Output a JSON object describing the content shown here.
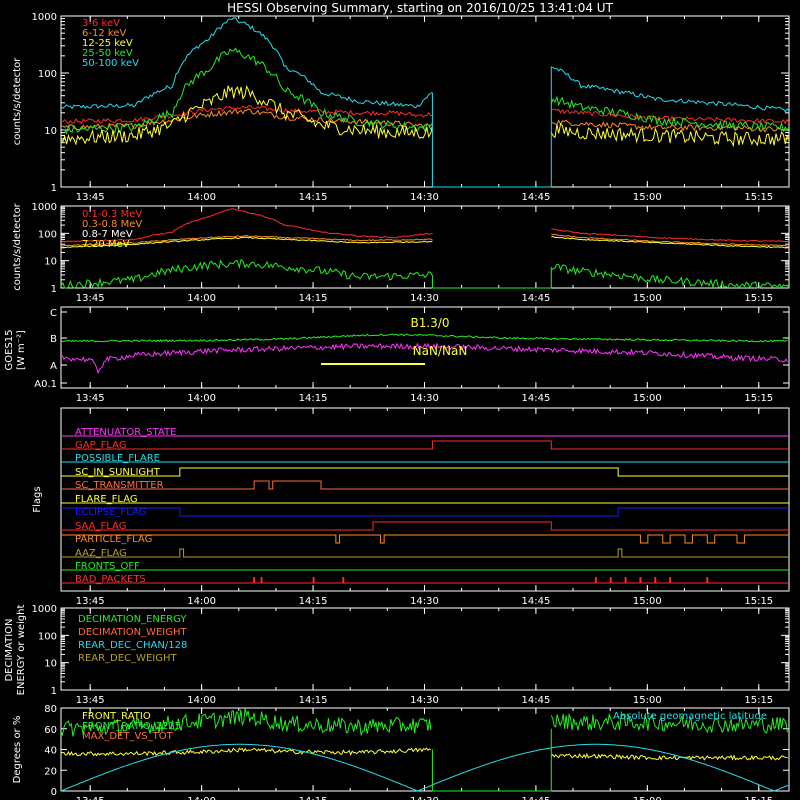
{
  "title": "HESSI Observing Summary, starting on 2016/10/25 13:41:04 UT",
  "time_ticks": [
    "13:45",
    "14:00",
    "14:15",
    "14:30",
    "14:45",
    "15:00",
    "15:15"
  ],
  "colors": {
    "red": "#ff2a2a",
    "orange": "#ff8c1a",
    "yellow": "#ffff33",
    "green": "#22ee22",
    "cyan": "#22ddee",
    "magenta": "#ff33ff",
    "blue": "#1a1aff",
    "olive": "#b8a020",
    "salmon": "#ff6a3a",
    "white": "#ffffff"
  },
  "panels": {
    "p1": {
      "ylabel": "counts/s/detector",
      "yticks": [
        "1",
        "10",
        "100",
        "1000"
      ],
      "legend": [
        "3-6 keV",
        "6-12 keV",
        "12-25 keV",
        "25-50 keV",
        "50-100 keV"
      ]
    },
    "p2": {
      "ylabel": "counts/s/detector",
      "yticks": [
        "1",
        "10",
        "100",
        "1000"
      ],
      "legend": [
        "0.1-0.3 MeV",
        "0.3-0.8 MeV",
        "0.8-7 MeV",
        "7-20 MeV"
      ]
    },
    "p3": {
      "ylabel_top": "GOES15",
      "ylabel_bottom": "[W m⁻²]",
      "yticks": [
        "A0.1",
        "A",
        "B",
        "C"
      ],
      "annot_top": "B1.3/0",
      "annot_bottom": "NaN/NaN"
    },
    "p4": {
      "ylabel": "Flags",
      "flags": [
        "ATTENUATOR_STATE",
        "GAP_FLAG",
        "POSSIBLE_FLARE",
        "SC_IN_SUNLIGHT",
        "SC_TRANSMITTER",
        "FLARE_FLAG",
        "ECLIPSE_FLAG",
        "SAA_FLAG",
        "PARTICLE_FLAG",
        "AAZ_FLAG",
        "FRONTS_OFF",
        "BAD_PACKETS"
      ]
    },
    "p5": {
      "ylabel_top": "DECIMATION",
      "ylabel_bottom": "ENERGY or weight",
      "yticks": [
        "1",
        "10",
        "100",
        "1000"
      ],
      "legend": [
        "DECIMATION_ENERGY",
        "DECIMATION_WEIGHT",
        "REAR_DEC_CHAN/128",
        "REAR_DEC_WEIGHT"
      ]
    },
    "p6": {
      "ylabel": "Degrees or %",
      "yticks": [
        "0",
        "20",
        "40",
        "60",
        "80"
      ],
      "legend": [
        "FRONT_RATIO",
        "FRONT_RATIO_1225",
        "MAX_DET_VS_TOT"
      ],
      "legend_right": "Absolute geomagnetic latitude"
    }
  },
  "chart_data": {
    "type": "line",
    "x_unit": "minutes after 13:41:04 UT",
    "xlim": [
      0,
      98
    ],
    "data_gap": [
      50,
      66
    ],
    "p1_series": [
      {
        "name": "3-6 keV",
        "x": [
          0,
          10,
          15,
          20,
          25,
          30,
          35,
          40,
          45,
          48,
          50,
          66,
          70,
          80,
          90,
          98
        ],
        "y": [
          14,
          15,
          18,
          23,
          25,
          22,
          21,
          20,
          20,
          18,
          19,
          22,
          20,
          16,
          15,
          14
        ]
      },
      {
        "name": "6-12 keV",
        "x": [
          0,
          10,
          15,
          20,
          25,
          30,
          35,
          40,
          45,
          48,
          50,
          66,
          70,
          80,
          90,
          98
        ],
        "y": [
          11,
          12,
          15,
          19,
          22,
          17,
          15,
          14,
          13,
          12,
          12,
          14,
          13,
          11,
          11,
          10
        ]
      },
      {
        "name": "12-25 keV",
        "x": [
          0,
          10,
          15,
          20,
          23,
          25,
          30,
          35,
          40,
          45,
          48,
          50,
          66,
          70,
          80,
          90,
          98
        ],
        "y": [
          7,
          8,
          12,
          30,
          48,
          45,
          20,
          12,
          10,
          9,
          9,
          9,
          10,
          9,
          8,
          7,
          7
        ]
      },
      {
        "name": "25-50 keV",
        "x": [
          0,
          10,
          15,
          20,
          23,
          25,
          30,
          35,
          40,
          45,
          48,
          50,
          66,
          70,
          80,
          90,
          98
        ],
        "y": [
          10,
          11,
          20,
          120,
          250,
          200,
          50,
          20,
          14,
          12,
          11,
          11,
          35,
          25,
          15,
          12,
          11
        ]
      },
      {
        "name": "50-100 keV",
        "x": [
          0,
          10,
          15,
          20,
          23,
          25,
          30,
          35,
          40,
          45,
          48,
          50,
          66,
          70,
          80,
          90,
          98
        ],
        "y": [
          25,
          27,
          60,
          400,
          900,
          700,
          130,
          45,
          32,
          28,
          26,
          45,
          130,
          60,
          35,
          28,
          22
        ]
      }
    ],
    "p2_series": [
      {
        "name": "0.1-0.3 MeV",
        "x": [
          0,
          10,
          15,
          20,
          23,
          25,
          30,
          35,
          40,
          45,
          50,
          66,
          70,
          80,
          90,
          98
        ],
        "y": [
          50,
          60,
          110,
          400,
          800,
          600,
          200,
          110,
          80,
          70,
          100,
          140,
          100,
          70,
          55,
          50
        ]
      },
      {
        "name": "0.3-0.8 MeV",
        "x": [
          0,
          10,
          20,
          25,
          30,
          40,
          50,
          66,
          70,
          80,
          90,
          98
        ],
        "y": [
          35,
          45,
          70,
          80,
          70,
          55,
          60,
          90,
          70,
          50,
          40,
          35
        ]
      },
      {
        "name": "0.8-7 MeV",
        "x": [
          0,
          10,
          20,
          25,
          30,
          40,
          50,
          66,
          70,
          80,
          90,
          98
        ],
        "y": [
          30,
          40,
          60,
          70,
          60,
          45,
          50,
          75,
          60,
          45,
          35,
          30
        ]
      },
      {
        "name": "7-20 MeV",
        "x": [
          0,
          10,
          20,
          25,
          30,
          40,
          50,
          66,
          70,
          80,
          90,
          98
        ],
        "y": [
          1.2,
          2,
          7,
          8,
          6,
          2.5,
          3,
          6,
          4,
          2,
          1.3,
          1.1
        ]
      }
    ],
    "p3_series": [
      {
        "name": "GOES long",
        "x": [
          0,
          20,
          30,
          40,
          45,
          50,
          60,
          70,
          80,
          90,
          98
        ],
        "y": [
          0.55,
          0.57,
          0.6,
          0.68,
          0.7,
          0.68,
          0.62,
          0.6,
          0.58,
          0.56,
          0.55
        ]
      },
      {
        "name": "GOES short",
        "x": [
          0,
          4,
          5,
          6,
          10,
          20,
          30,
          40,
          50,
          60,
          70,
          80,
          90,
          98
        ],
        "y": [
          -0.1,
          -0.15,
          -0.4,
          -0.15,
          -0.05,
          0.05,
          0.1,
          0.15,
          0.15,
          0.1,
          0.05,
          0.0,
          -0.1,
          -0.15
        ]
      }
    ],
    "p3_marker": {
      "x": [
        35,
        49
      ],
      "y": 0.05
    },
    "flags": [
      {
        "name": "ATTENUATOR_STATE",
        "steps": [
          [
            0,
            0
          ],
          [
            98,
            0
          ]
        ]
      },
      {
        "name": "GAP_FLAG",
        "steps": [
          [
            0,
            0
          ],
          [
            50,
            1
          ],
          [
            66,
            0
          ],
          [
            98,
            0
          ]
        ]
      },
      {
        "name": "POSSIBLE_FLARE",
        "steps": [
          [
            0,
            0
          ],
          [
            98,
            0
          ]
        ]
      },
      {
        "name": "SC_IN_SUNLIGHT",
        "steps": [
          [
            0,
            0
          ],
          [
            16,
            1
          ],
          [
            75,
            0
          ],
          [
            98,
            0
          ]
        ]
      },
      {
        "name": "SC_TRANSMITTER",
        "steps": [
          [
            0,
            0
          ],
          [
            26,
            1
          ],
          [
            28,
            0
          ],
          [
            28.5,
            1
          ],
          [
            35,
            0
          ],
          [
            98,
            0
          ]
        ]
      },
      {
        "name": "FLARE_FLAG",
        "steps": [
          [
            0,
            0
          ],
          [
            98,
            0
          ]
        ]
      },
      {
        "name": "ECLIPSE_FLAG",
        "steps": [
          [
            0,
            1
          ],
          [
            16,
            0
          ],
          [
            75,
            1
          ],
          [
            98,
            1
          ]
        ]
      },
      {
        "name": "SAA_FLAG",
        "steps": [
          [
            0,
            0
          ],
          [
            42,
            1
          ],
          [
            66,
            0
          ],
          [
            98,
            0
          ]
        ]
      },
      {
        "name": "PARTICLE_FLAG",
        "steps": [
          [
            0,
            1
          ],
          [
            37,
            0
          ],
          [
            37.5,
            1
          ],
          [
            43,
            0
          ],
          [
            43.5,
            1
          ],
          [
            78,
            0
          ],
          [
            79,
            1
          ],
          [
            81,
            0
          ],
          [
            82,
            1
          ],
          [
            84,
            0
          ],
          [
            85,
            1
          ],
          [
            87,
            0
          ],
          [
            88,
            1
          ],
          [
            91,
            0
          ],
          [
            92,
            1
          ],
          [
            98,
            1
          ]
        ]
      },
      {
        "name": "AAZ_FLAG",
        "steps": [
          [
            0,
            0
          ],
          [
            16,
            1
          ],
          [
            16.5,
            0
          ],
          [
            75,
            1
          ],
          [
            75.5,
            0
          ],
          [
            98,
            0
          ]
        ]
      },
      {
        "name": "FRONTS_OFF",
        "steps": [
          [
            0,
            0
          ],
          [
            98,
            0
          ]
        ]
      },
      {
        "name": "BAD_PACKETS",
        "spikes": [
          26,
          27,
          34,
          38,
          72,
          74,
          76,
          78,
          80,
          82,
          87
        ]
      }
    ],
    "p6_series": [
      {
        "name": "FRONT_RATIO",
        "x": [
          0,
          10,
          20,
          25,
          30,
          40,
          50,
          66,
          70,
          80,
          90,
          98
        ],
        "y": [
          36,
          36,
          38,
          40,
          38,
          37,
          40,
          34,
          34,
          32,
          32,
          32
        ]
      },
      {
        "name": "FRONT_RATIO_1225",
        "x": [
          0,
          10,
          20,
          25,
          30,
          40,
          50,
          66,
          70,
          80,
          90,
          98
        ],
        "y": [
          60,
          62,
          68,
          72,
          65,
          62,
          64,
          68,
          66,
          66,
          64,
          64
        ]
      },
      {
        "name": "Absolute geomagnetic latitude",
        "x": [
          0,
          12,
          24,
          36,
          48,
          60,
          72,
          84,
          96,
          98
        ],
        "y": [
          0,
          30,
          45,
          30,
          0,
          35,
          45,
          30,
          0,
          5
        ]
      }
    ]
  }
}
